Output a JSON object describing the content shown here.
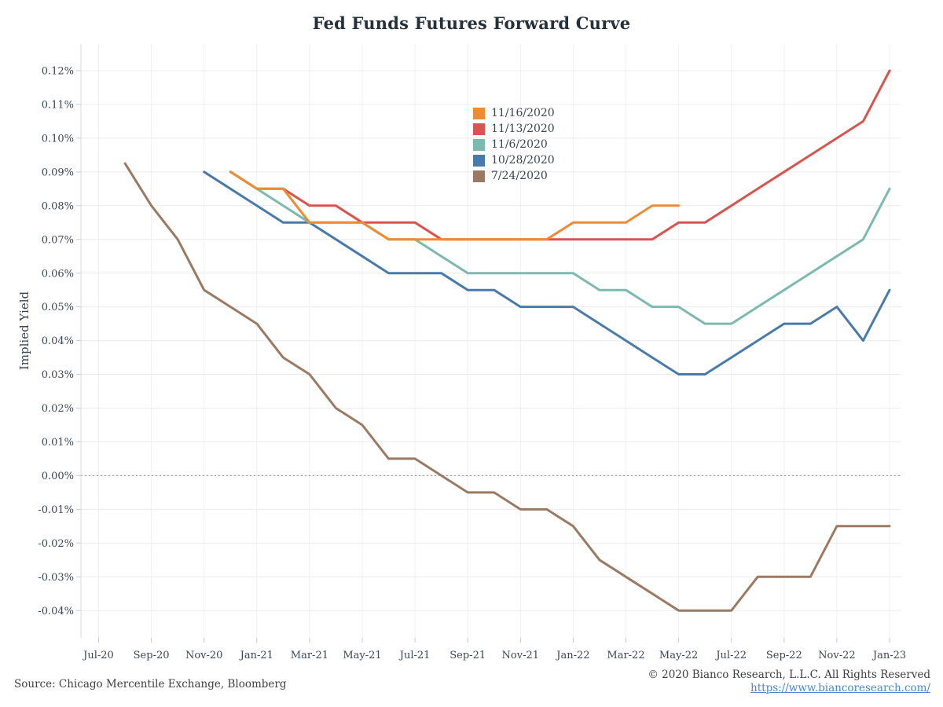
{
  "title": "Fed Funds Futures Forward Curve",
  "y_axis_title": "Implied Yield",
  "legend": {
    "items": [
      {
        "label": "11/16/2020",
        "color": "#ee8c33"
      },
      {
        "label": "11/13/2020",
        "color": "#d85450"
      },
      {
        "label": "11/6/2020",
        "color": "#7cb9ae"
      },
      {
        "label": "10/28/2020",
        "color": "#497aa9"
      },
      {
        "label": "7/24/2020",
        "color": "#9b7a64"
      }
    ]
  },
  "footer": {
    "source": "Source: Chicago Mercentile Exchange, Bloomberg",
    "copyright": "© 2020 Bianco Research, L.L.C. All Rights Reserved",
    "link": "https://www.biancoresearch.com/"
  },
  "chart_data": {
    "type": "line",
    "title": "Fed Funds Futures Forward Curve",
    "xlabel": "",
    "ylabel": "Implied Yield",
    "grid": true,
    "legend_position": "inside-top-center",
    "ylim": [
      -0.04,
      0.12
    ],
    "y_tick_step": 0.01,
    "y_tick_suffix": "%",
    "categories": [
      "Jul-20",
      "Aug-20",
      "Sep-20",
      "Oct-20",
      "Nov-20",
      "Dec-20",
      "Jan-21",
      "Feb-21",
      "Mar-21",
      "Apr-21",
      "May-21",
      "Jun-21",
      "Jul-21",
      "Aug-21",
      "Sep-21",
      "Oct-21",
      "Nov-21",
      "Dec-21",
      "Jan-22",
      "Feb-22",
      "Mar-22",
      "Apr-22",
      "May-22",
      "Jun-22",
      "Jul-22",
      "Aug-22",
      "Sep-22",
      "Oct-22",
      "Nov-22",
      "Dec-22",
      "Jan-23"
    ],
    "x_labeled_every": 2,
    "series": [
      {
        "name": "11/16/2020",
        "color": "#ee8c33",
        "values": [
          null,
          null,
          null,
          null,
          null,
          0.09,
          0.085,
          0.085,
          0.075,
          0.075,
          0.075,
          0.07,
          0.07,
          0.07,
          0.07,
          0.07,
          0.07,
          0.07,
          0.075,
          0.075,
          0.075,
          0.08,
          0.08,
          null,
          null,
          null,
          null,
          null,
          null,
          null,
          null
        ]
      },
      {
        "name": "11/13/2020",
        "color": "#d85450",
        "values": [
          null,
          null,
          null,
          null,
          null,
          0.09,
          0.085,
          0.085,
          0.08,
          0.08,
          0.075,
          0.075,
          0.075,
          0.07,
          0.07,
          0.07,
          0.07,
          0.07,
          0.07,
          0.07,
          0.07,
          0.07,
          0.075,
          0.075,
          0.08,
          0.085,
          0.09,
          0.095,
          0.1,
          0.105,
          0.12
        ]
      },
      {
        "name": "11/6/2020",
        "color": "#7cb9ae",
        "values": [
          null,
          null,
          null,
          null,
          null,
          0.09,
          0.085,
          0.08,
          0.075,
          0.075,
          0.075,
          0.07,
          0.07,
          0.065,
          0.06,
          0.06,
          0.06,
          0.06,
          0.06,
          0.055,
          0.055,
          0.05,
          0.05,
          0.045,
          0.045,
          0.05,
          0.055,
          0.06,
          0.065,
          0.07,
          0.085
        ]
      },
      {
        "name": "10/28/2020",
        "color": "#497aa9",
        "values": [
          null,
          null,
          null,
          null,
          0.09,
          0.085,
          0.08,
          0.075,
          0.075,
          0.07,
          0.065,
          0.06,
          0.06,
          0.06,
          0.055,
          0.055,
          0.05,
          0.05,
          0.05,
          0.045,
          0.04,
          0.035,
          0.03,
          0.03,
          0.035,
          0.04,
          0.045,
          0.045,
          0.05,
          0.04,
          0.055
        ]
      },
      {
        "name": "7/24/2020",
        "color": "#9b7a64",
        "values": [
          null,
          0.0925,
          0.08,
          0.07,
          0.055,
          0.05,
          0.045,
          0.035,
          0.03,
          0.02,
          0.015,
          0.005,
          0.005,
          0.0,
          -0.005,
          -0.005,
          -0.01,
          -0.01,
          -0.015,
          -0.025,
          -0.03,
          -0.035,
          -0.04,
          -0.04,
          -0.04,
          -0.03,
          -0.03,
          -0.03,
          -0.015,
          -0.015,
          -0.015
        ]
      }
    ]
  }
}
